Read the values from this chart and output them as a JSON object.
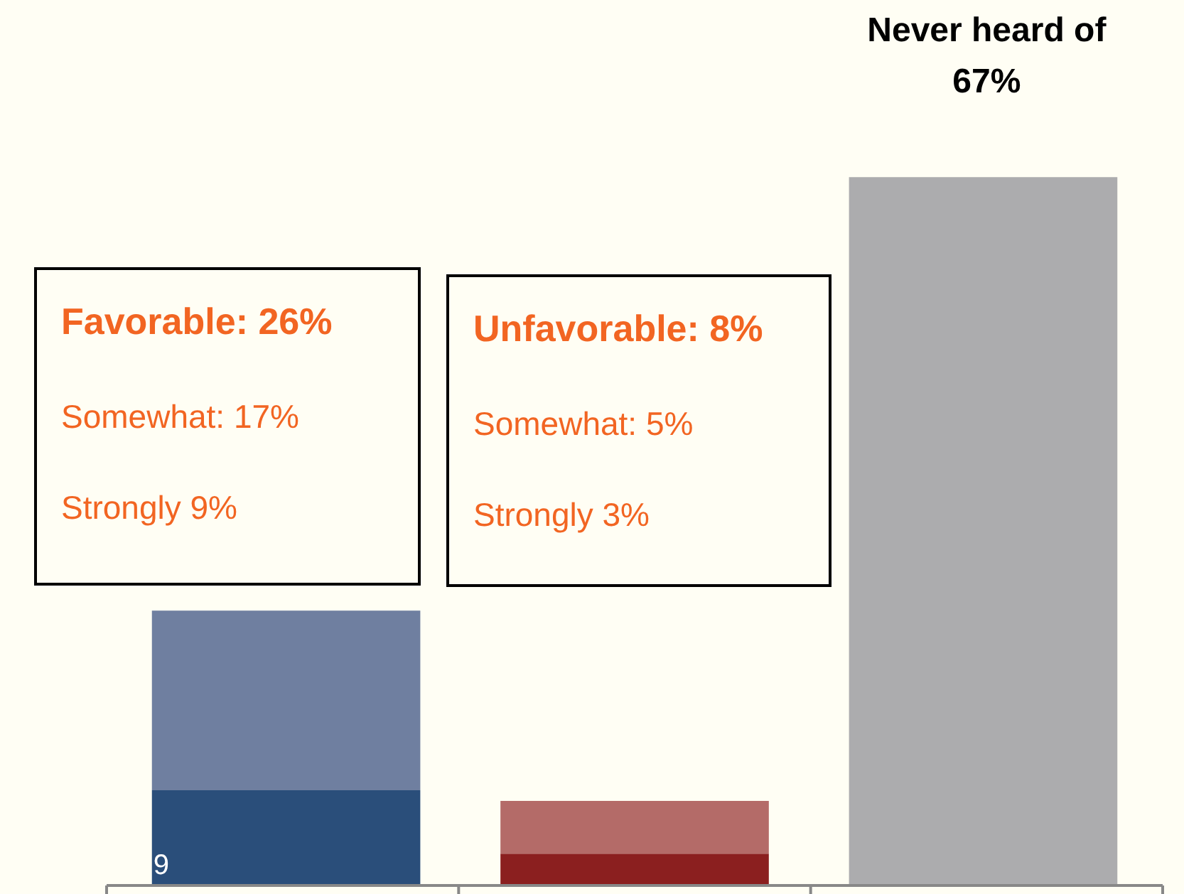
{
  "chart_data": {
    "type": "bar",
    "stacked": true,
    "categories": [
      null,
      null,
      null
    ],
    "series": [
      {
        "colors": [
          "#2a4e7a",
          "#8b1f1f",
          "#acacae"
        ],
        "values": [
          9,
          3,
          67
        ],
        "value_labels": [
          "9",
          null,
          null
        ]
      },
      {
        "colors": [
          "#6f7fa0",
          "#b46b68",
          "#acacae"
        ],
        "values": [
          17,
          5,
          null
        ]
      }
    ],
    "annotations": [
      "Favorable: 26%",
      "Somewhat: 17%",
      "Strongly 9%",
      "Unfavorable: 8%",
      "Somewhat: 5%",
      "Strongly 3%",
      "Never heard of\n67%"
    ]
  }
}
